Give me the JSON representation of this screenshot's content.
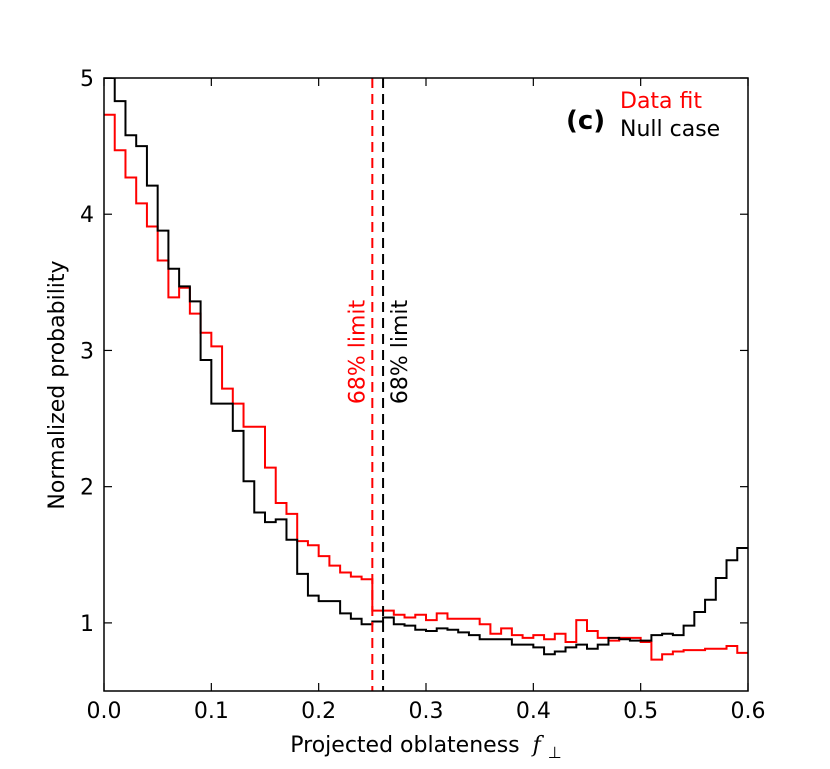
{
  "chart_data": {
    "type": "histogram",
    "panel_label": "(c)",
    "xlabel": "Projected oblateness",
    "xlabel_symbol": "f",
    "xlabel_subscript": "⊥",
    "ylabel": "Normalized probability",
    "xlim": [
      0.0,
      0.6
    ],
    "ylim": [
      0.5,
      5.0
    ],
    "xticks": [
      0.0,
      0.1,
      0.2,
      0.3,
      0.4,
      0.5,
      0.6
    ],
    "xtick_labels": [
      "0.0",
      "0.1",
      "0.2",
      "0.3",
      "0.4",
      "0.5",
      "0.6"
    ],
    "yticks": [
      1,
      2,
      3,
      4,
      5
    ],
    "ytick_labels": [
      "1",
      "2",
      "3",
      "4",
      "5"
    ],
    "bin_width": 0.01,
    "bin_start": 0.0,
    "series": [
      {
        "name": "Data fit",
        "color": "#ff0000",
        "values": [
          4.73,
          4.47,
          4.27,
          4.08,
          3.91,
          3.66,
          3.39,
          3.46,
          3.27,
          3.13,
          3.03,
          2.72,
          2.61,
          2.44,
          2.44,
          2.14,
          1.88,
          1.8,
          1.6,
          1.57,
          1.49,
          1.42,
          1.37,
          1.34,
          1.32,
          1.09,
          1.09,
          1.06,
          1.04,
          1.06,
          1.02,
          1.07,
          1.03,
          1.03,
          1.03,
          0.99,
          0.92,
          0.96,
          0.91,
          0.89,
          0.91,
          0.88,
          0.92,
          0.86,
          1.02,
          0.94,
          0.89,
          0.87,
          0.89,
          0.89,
          0.86,
          0.73,
          0.77,
          0.79,
          0.8,
          0.8,
          0.81,
          0.81,
          0.83,
          0.78
        ]
      },
      {
        "name": "Null case",
        "color": "#000000",
        "values": [
          5.0,
          4.83,
          4.58,
          4.5,
          4.21,
          3.88,
          3.6,
          3.47,
          3.36,
          2.93,
          2.61,
          2.61,
          2.41,
          2.04,
          1.81,
          1.74,
          1.76,
          1.61,
          1.36,
          1.2,
          1.16,
          1.16,
          1.07,
          1.03,
          0.99,
          1.01,
          1.04,
          0.99,
          0.98,
          0.95,
          0.94,
          0.96,
          0.95,
          0.93,
          0.91,
          0.88,
          0.88,
          0.88,
          0.84,
          0.84,
          0.82,
          0.77,
          0.79,
          0.82,
          0.84,
          0.81,
          0.84,
          0.89,
          0.88,
          0.87,
          0.87,
          0.91,
          0.92,
          0.91,
          0.98,
          1.08,
          1.17,
          1.33,
          1.46,
          1.55
        ]
      }
    ],
    "vlines": [
      {
        "x": 0.25,
        "color": "#ff0000",
        "style": "dashed",
        "label": "68% limit"
      },
      {
        "x": 0.26,
        "color": "#000000",
        "style": "dashed",
        "label": "68% limit"
      }
    ],
    "legend_placement": "top-right"
  }
}
